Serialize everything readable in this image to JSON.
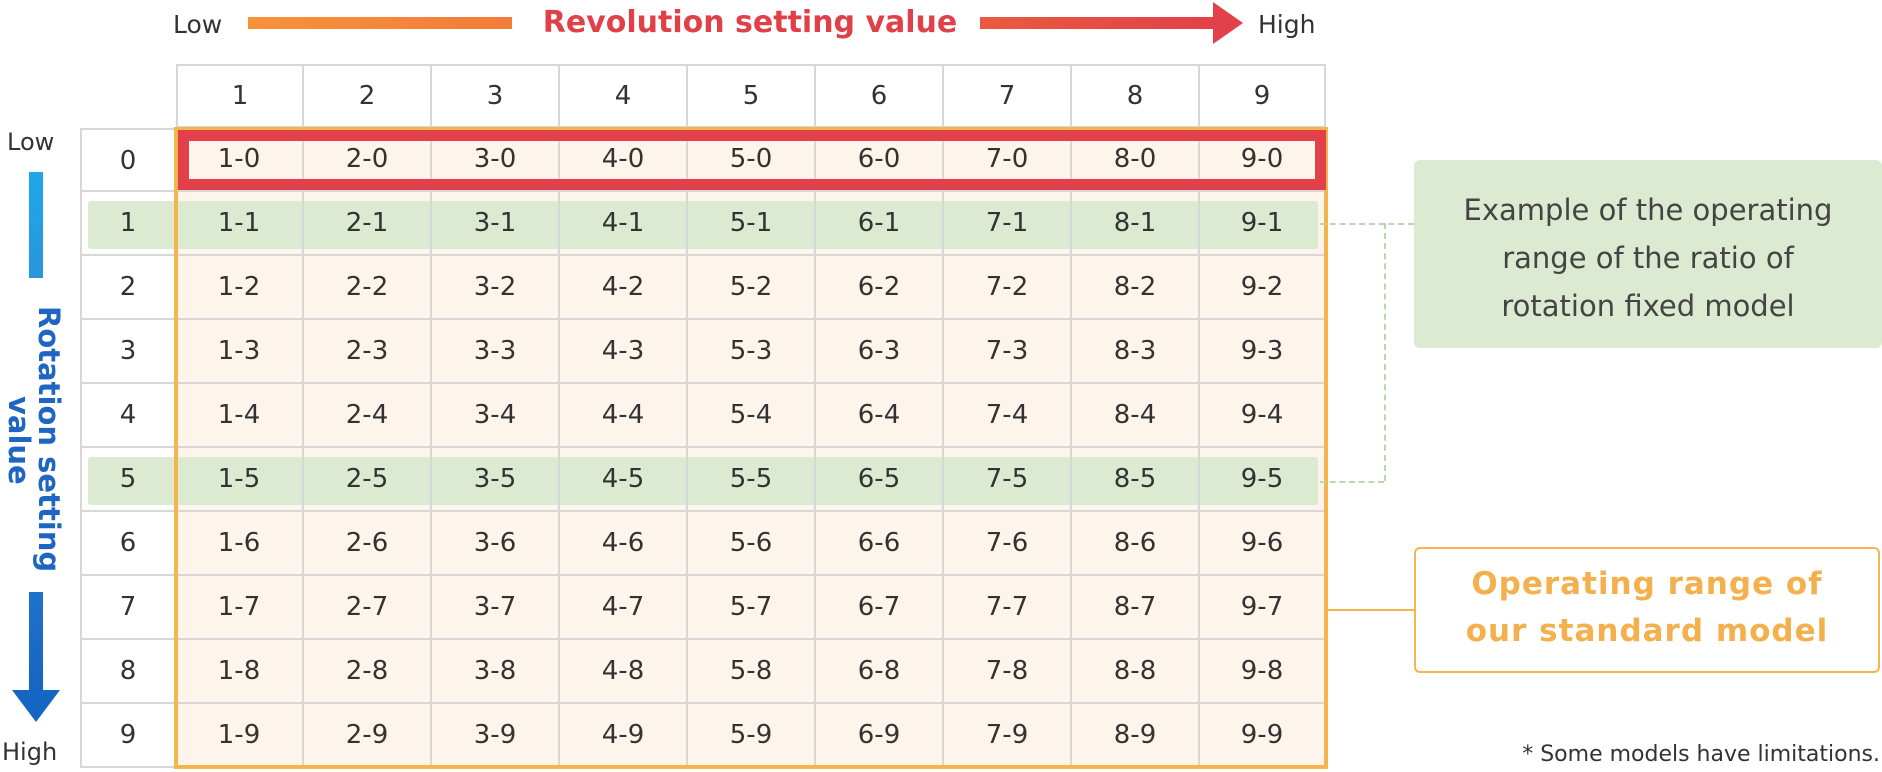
{
  "top_axis": {
    "low_label": "Low",
    "high_label": "High",
    "title": "Revolution setting value",
    "colors": {
      "bar_left": "#f8923a",
      "bar_right": "#e2404a",
      "title": "#e04048"
    }
  },
  "left_axis": {
    "low_label": "Low",
    "high_label": "High",
    "title_line1": "Rotation setting",
    "title_line2": "value",
    "colors": {
      "bar_top": "#1fa7e8",
      "bar_bottom": "#1565c2",
      "title": "#1f66c4"
    }
  },
  "grid": {
    "column_headers": [
      "1",
      "2",
      "3",
      "4",
      "5",
      "6",
      "7",
      "8",
      "9"
    ],
    "row_headers": [
      "0",
      "1",
      "2",
      "3",
      "4",
      "5",
      "6",
      "7",
      "8",
      "9"
    ],
    "cells": [
      [
        "1-0",
        "2-0",
        "3-0",
        "4-0",
        "5-0",
        "6-0",
        "7-0",
        "8-0",
        "9-0"
      ],
      [
        "1-1",
        "2-1",
        "3-1",
        "4-1",
        "5-1",
        "6-1",
        "7-1",
        "8-1",
        "9-1"
      ],
      [
        "1-2",
        "2-2",
        "3-2",
        "4-2",
        "5-2",
        "6-2",
        "7-2",
        "8-2",
        "9-2"
      ],
      [
        "1-3",
        "2-3",
        "3-3",
        "4-3",
        "5-3",
        "6-3",
        "7-3",
        "8-3",
        "9-3"
      ],
      [
        "1-4",
        "2-4",
        "3-4",
        "4-4",
        "5-4",
        "6-4",
        "7-4",
        "8-4",
        "9-4"
      ],
      [
        "1-5",
        "2-5",
        "3-5",
        "4-5",
        "5-5",
        "6-5",
        "7-5",
        "8-5",
        "9-5"
      ],
      [
        "1-6",
        "2-6",
        "3-6",
        "4-6",
        "5-6",
        "6-6",
        "7-6",
        "8-6",
        "9-6"
      ],
      [
        "1-7",
        "2-7",
        "3-7",
        "4-7",
        "5-7",
        "6-7",
        "7-7",
        "8-7",
        "9-7"
      ],
      [
        "1-8",
        "2-8",
        "3-8",
        "4-8",
        "5-8",
        "6-8",
        "7-8",
        "8-8",
        "9-8"
      ],
      [
        "1-9",
        "2-9",
        "3-9",
        "4-9",
        "5-9",
        "6-9",
        "7-9",
        "8-9",
        "9-9"
      ]
    ],
    "highlighted_rows_green": [
      "1",
      "5"
    ],
    "highlighted_row_red": "0",
    "colors": {
      "cell_fill": "#fdf4ec",
      "green_band": "#dbead0",
      "red_frame": "#e2404a",
      "orange_frame": "#f6b44c",
      "grid_line": "#d7d7d7"
    }
  },
  "callouts": {
    "green_line1": "Example of the operating",
    "green_line2": "range of the ratio of",
    "green_line3": "rotation fixed model",
    "orange_line1": "Operating range of",
    "orange_line2": "our standard model"
  },
  "footnote": "* Some models have limitations."
}
